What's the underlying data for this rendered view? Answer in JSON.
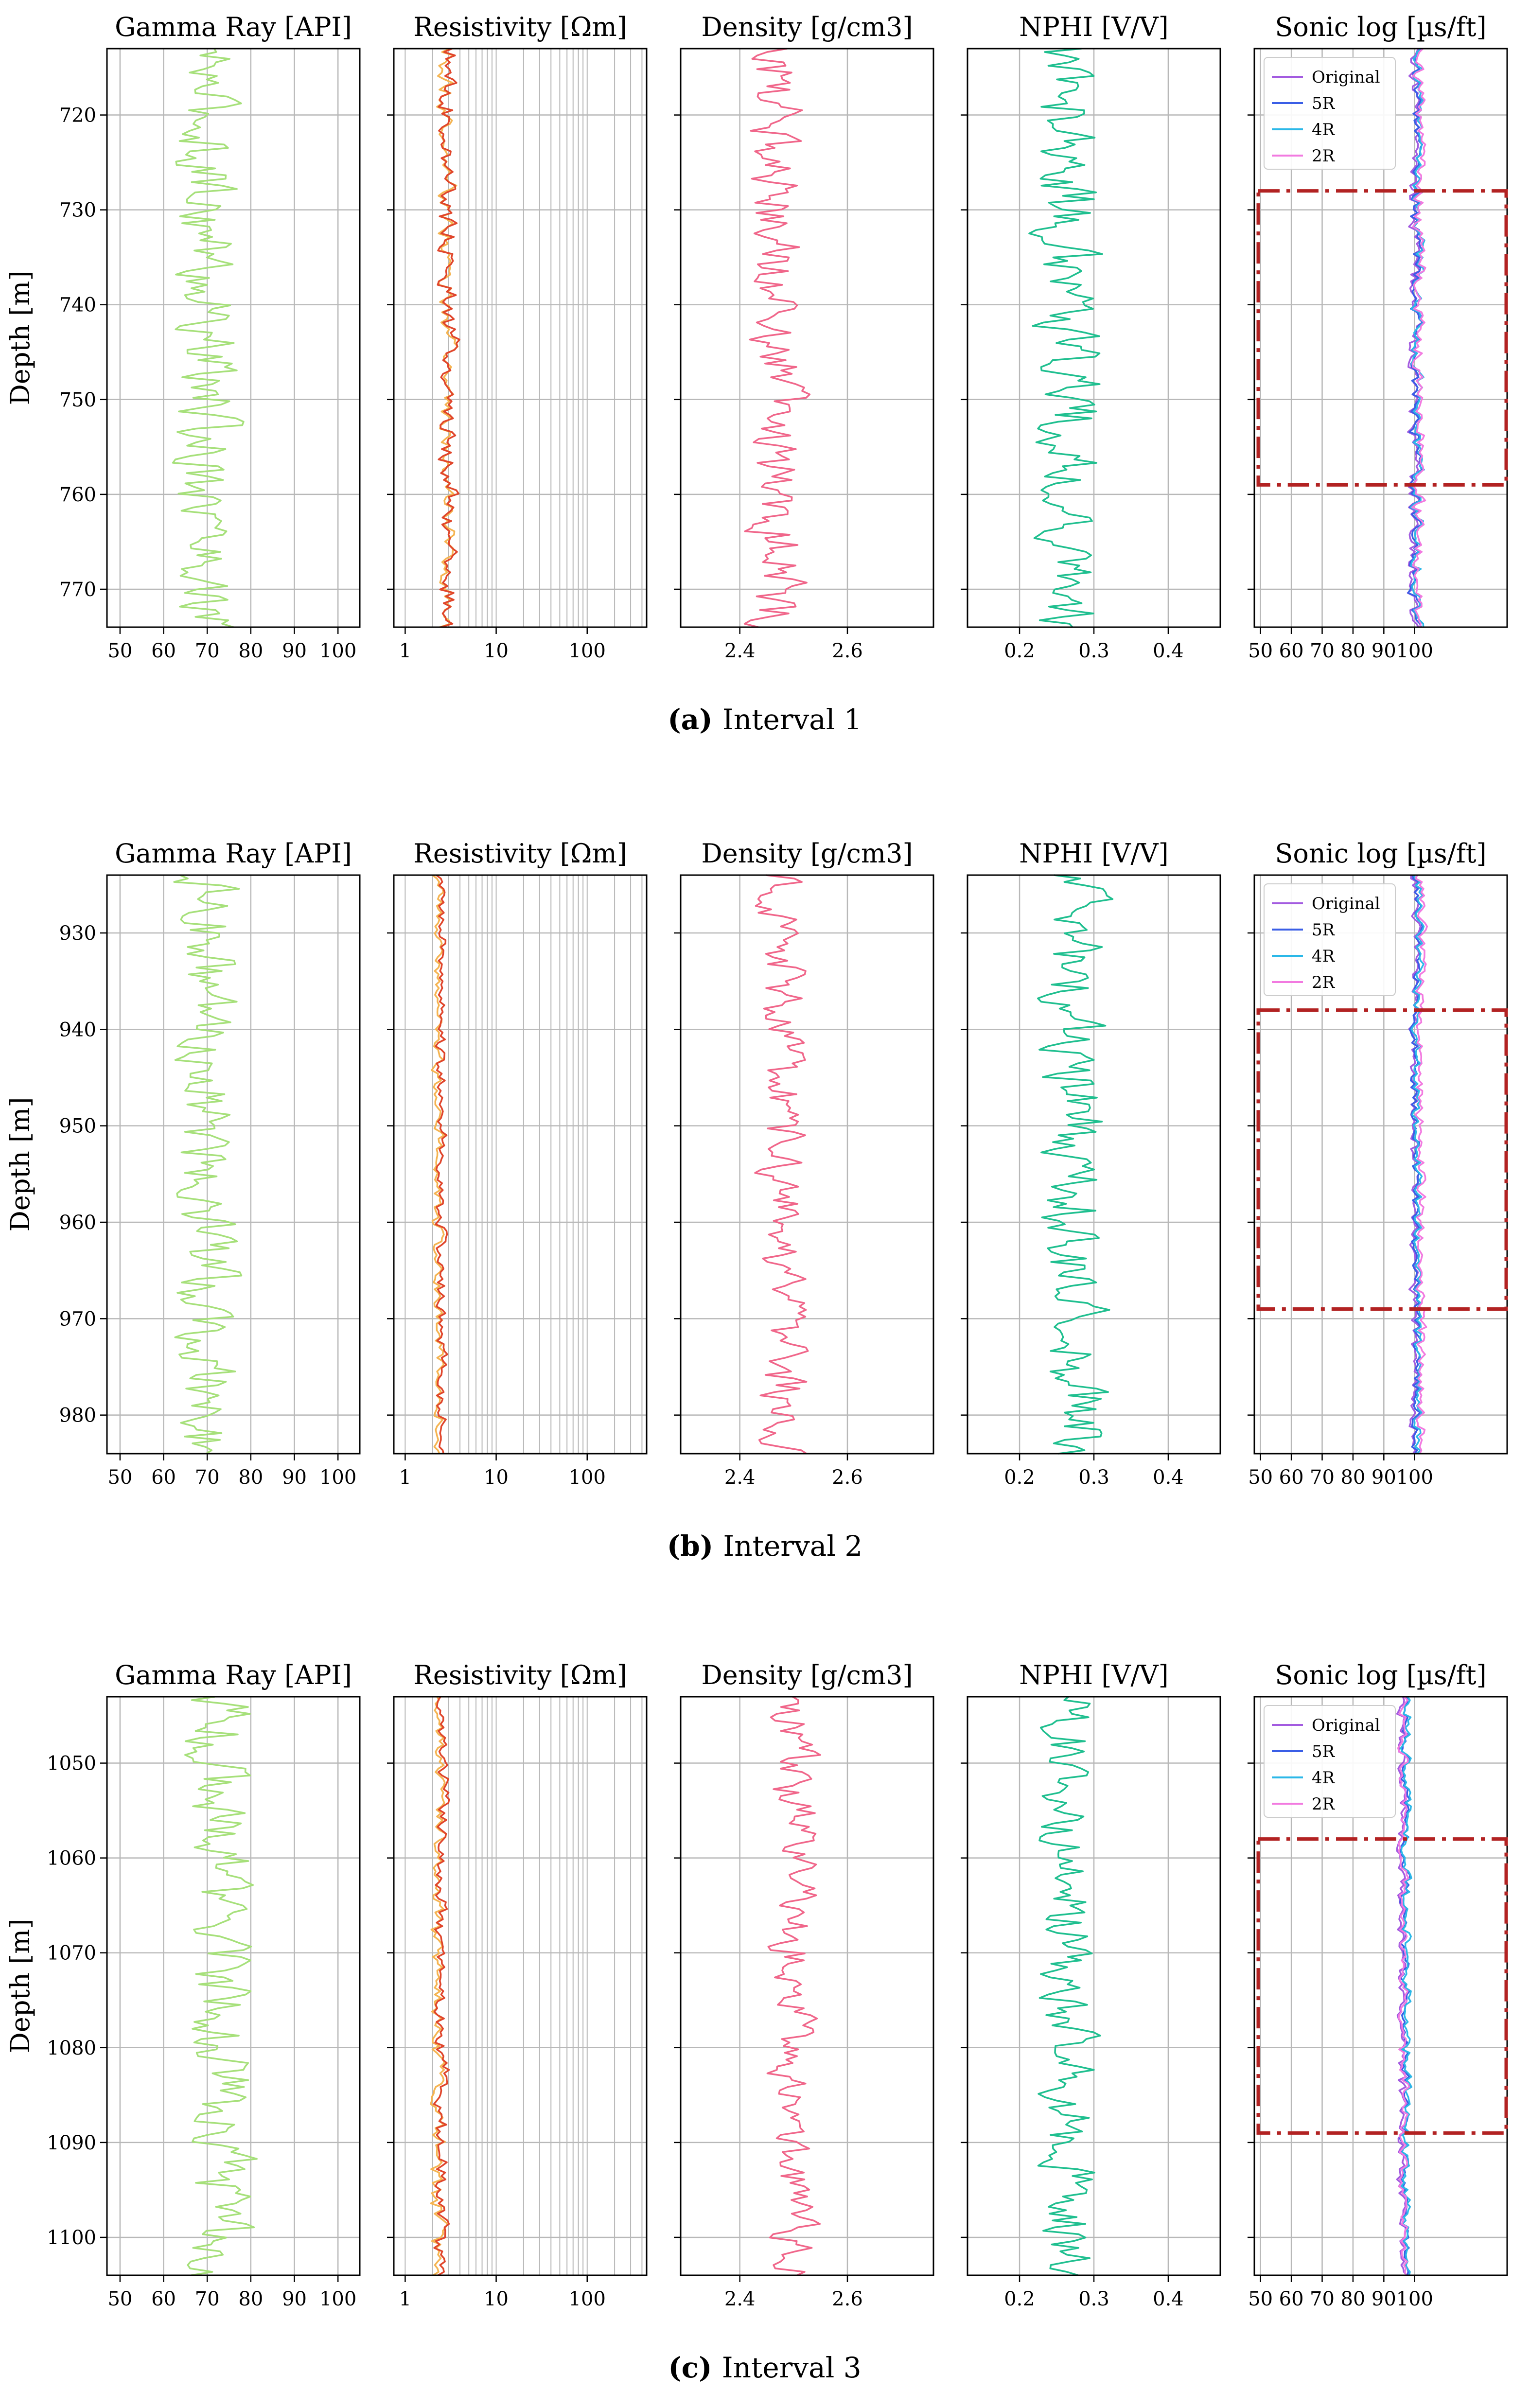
{
  "chart_data": [
    {
      "type": "line",
      "caption_label": "(a)",
      "caption_text": "Interval 1",
      "ylabel": "Depth [m]",
      "depth_range": [
        713,
        774
      ],
      "depth_ticks": [
        720,
        730,
        740,
        750,
        760,
        770
      ],
      "highlight_depth": [
        728,
        759
      ],
      "tracks": [
        {
          "title": "Gamma Ray [API]",
          "scale": "linear",
          "xlim": [
            47,
            105
          ],
          "ticks": [
            50,
            60,
            70,
            80,
            90,
            100
          ],
          "series": [
            {
              "name": "Gamma Ray",
              "color": "#a6e07a",
              "center": 70,
              "amp": 5
            }
          ]
        },
        {
          "title": "Resistivity [Ωm]",
          "scale": "log",
          "xlim": [
            0.75,
            450
          ],
          "ticks": [
            1,
            10,
            100
          ],
          "series": [
            {
              "name": "Resistivity A",
              "color": "#f5b451",
              "center": 2.9,
              "amp": 0.3
            },
            {
              "name": "Resistivity B",
              "color": "#e0452b",
              "center": 3.0,
              "amp": 0.35
            }
          ]
        },
        {
          "title": "Density [g/cm3]",
          "scale": "linear",
          "xlim": [
            2.29,
            2.76
          ],
          "ticks": [
            2.4,
            2.6
          ],
          "series": [
            {
              "name": "Density",
              "color": "#f0668a",
              "center": 2.47,
              "amp": 0.035
            }
          ]
        },
        {
          "title": "NPHI [V/V]",
          "scale": "linear",
          "xlim": [
            0.13,
            0.47
          ],
          "ticks": [
            0.2,
            0.3,
            0.4
          ],
          "series": [
            {
              "name": "NPHI",
              "color": "#1fbf8f",
              "center": 0.265,
              "amp": 0.03
            }
          ]
        },
        {
          "title": "Sonic log [µs/ft]",
          "scale": "linear",
          "xlim": [
            48,
            130
          ],
          "ticks": [
            50,
            60,
            70,
            80,
            90,
            100
          ],
          "legend": [
            "Original",
            "5R",
            "4R",
            "2R"
          ],
          "series": [
            {
              "name": "Original",
              "color": "#a35be0",
              "center": 100,
              "amp": 1.5
            },
            {
              "name": "5R",
              "color": "#3a5ee6",
              "center": 100.5,
              "amp": 1.5
            },
            {
              "name": "4R",
              "color": "#2bb8e8",
              "center": 101,
              "amp": 1.5
            },
            {
              "name": "2R",
              "color": "#f27ae0",
              "center": 101.5,
              "amp": 1.5
            }
          ]
        }
      ]
    },
    {
      "type": "line",
      "caption_label": "(b)",
      "caption_text": "Interval 2",
      "ylabel": "Depth [m]",
      "depth_range": [
        924,
        984
      ],
      "depth_ticks": [
        930,
        940,
        950,
        960,
        970,
        980
      ],
      "highlight_depth": [
        938,
        969
      ],
      "tracks": [
        {
          "title": "Gamma Ray [API]",
          "scale": "linear",
          "xlim": [
            47,
            105
          ],
          "ticks": [
            50,
            60,
            70,
            80,
            90,
            100
          ],
          "series": [
            {
              "name": "Gamma Ray",
              "color": "#a6e07a",
              "center": 70,
              "amp": 5
            }
          ]
        },
        {
          "title": "Resistivity [Ωm]",
          "scale": "log",
          "xlim": [
            0.75,
            450
          ],
          "ticks": [
            1,
            10,
            100
          ],
          "series": [
            {
              "name": "Resistivity A",
              "color": "#f5b451",
              "center": 2.3,
              "amp": 0.15
            },
            {
              "name": "Resistivity B",
              "color": "#e0452b",
              "center": 2.5,
              "amp": 0.15
            }
          ]
        },
        {
          "title": "Density [g/cm3]",
          "scale": "linear",
          "xlim": [
            2.29,
            2.76
          ],
          "ticks": [
            2.4,
            2.6
          ],
          "series": [
            {
              "name": "Density",
              "color": "#f0668a",
              "center": 2.48,
              "amp": 0.03
            }
          ]
        },
        {
          "title": "NPHI [V/V]",
          "scale": "linear",
          "xlim": [
            0.13,
            0.47
          ],
          "ticks": [
            0.2,
            0.3,
            0.4
          ],
          "series": [
            {
              "name": "NPHI",
              "color": "#1fbf8f",
              "center": 0.275,
              "amp": 0.03
            }
          ]
        },
        {
          "title": "Sonic log [µs/ft]",
          "scale": "linear",
          "xlim": [
            48,
            130
          ],
          "ticks": [
            50,
            60,
            70,
            80,
            90,
            100
          ],
          "legend": [
            "Original",
            "5R",
            "4R",
            "2R"
          ],
          "series": [
            {
              "name": "Original",
              "color": "#a35be0",
              "center": 100,
              "amp": 1.2
            },
            {
              "name": "5R",
              "color": "#3a5ee6",
              "center": 100.5,
              "amp": 1.2
            },
            {
              "name": "4R",
              "color": "#2bb8e8",
              "center": 101,
              "amp": 1.2
            },
            {
              "name": "2R",
              "color": "#f27ae0",
              "center": 102,
              "amp": 1.2
            }
          ]
        }
      ]
    },
    {
      "type": "line",
      "caption_label": "(c)",
      "caption_text": "Interval 3",
      "ylabel": "Depth [m]",
      "depth_range": [
        1043,
        1104
      ],
      "depth_ticks": [
        1050,
        1060,
        1070,
        1080,
        1090,
        1100
      ],
      "highlight_depth": [
        1058,
        1089
      ],
      "tracks": [
        {
          "title": "Gamma Ray [API]",
          "scale": "linear",
          "xlim": [
            47,
            105
          ],
          "ticks": [
            50,
            60,
            70,
            80,
            90,
            100
          ],
          "series": [
            {
              "name": "Gamma Ray",
              "color": "#a6e07a",
              "center": 73,
              "amp": 5
            }
          ]
        },
        {
          "title": "Resistivity [Ωm]",
          "scale": "log",
          "xlim": [
            0.75,
            450
          ],
          "ticks": [
            1,
            10,
            100
          ],
          "series": [
            {
              "name": "Resistivity A",
              "color": "#f5b451",
              "center": 2.3,
              "amp": 0.2
            },
            {
              "name": "Resistivity B",
              "color": "#e0452b",
              "center": 2.5,
              "amp": 0.2
            }
          ]
        },
        {
          "title": "Density [g/cm3]",
          "scale": "linear",
          "xlim": [
            2.29,
            2.76
          ],
          "ticks": [
            2.4,
            2.6
          ],
          "series": [
            {
              "name": "Density",
              "color": "#f0668a",
              "center": 2.5,
              "amp": 0.03
            }
          ]
        },
        {
          "title": "NPHI [V/V]",
          "scale": "linear",
          "xlim": [
            0.13,
            0.47
          ],
          "ticks": [
            0.2,
            0.3,
            0.4
          ],
          "series": [
            {
              "name": "NPHI",
              "color": "#1fbf8f",
              "center": 0.265,
              "amp": 0.025
            }
          ]
        },
        {
          "title": "Sonic log [µs/ft]",
          "scale": "linear",
          "xlim": [
            48,
            130
          ],
          "ticks": [
            50,
            60,
            70,
            80,
            90,
            100
          ],
          "legend": [
            "Original",
            "5R",
            "4R",
            "2R"
          ],
          "series": [
            {
              "name": "Original",
              "color": "#a35be0",
              "center": 96,
              "amp": 1.2
            },
            {
              "name": "5R",
              "color": "#3a5ee6",
              "center": 97,
              "amp": 1.2
            },
            {
              "name": "4R",
              "color": "#2bb8e8",
              "center": 97.5,
              "amp": 1.2
            },
            {
              "name": "2R",
              "color": "#f27ae0",
              "center": 96.5,
              "amp": 1.2
            }
          ]
        }
      ]
    }
  ]
}
